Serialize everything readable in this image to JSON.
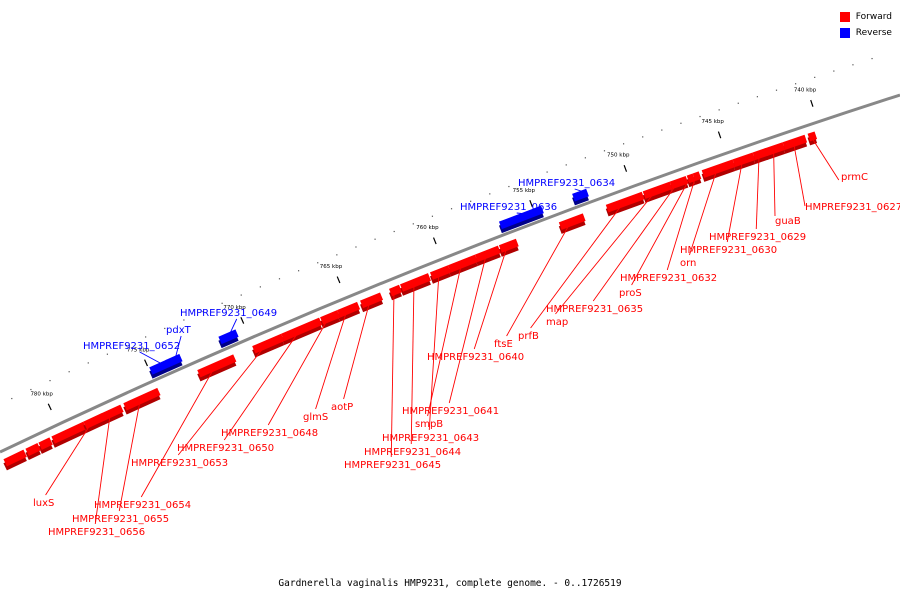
{
  "legend": [
    {
      "label": "Forward",
      "color": "#ff0000"
    },
    {
      "label": "Reverse",
      "color": "#0000ff"
    }
  ],
  "caption": "Gardnerella vaginalis HMP9231, complete genome. - 0..1726519",
  "colors": {
    "forward": "#ff0000",
    "reverse": "#0000ff",
    "backbone": "#888888"
  },
  "ticks": [
    {
      "label": "740 kbp"
    },
    {
      "label": "745 kbp"
    },
    {
      "label": "750 kbp"
    },
    {
      "label": "755 kbp"
    },
    {
      "label": "760 kbp"
    },
    {
      "label": "765 kbp"
    },
    {
      "label": "770 kbp"
    },
    {
      "label": "775 kbp"
    },
    {
      "label": "780 kbp"
    }
  ],
  "genes": [
    {
      "name": "prmC",
      "strand": "forward"
    },
    {
      "name": "HMPREF9231_0627",
      "strand": "forward"
    },
    {
      "name": "guaB",
      "strand": "forward"
    },
    {
      "name": "HMPREF9231_0629",
      "strand": "forward"
    },
    {
      "name": "HMPREF9231_0630",
      "strand": "forward"
    },
    {
      "name": "orn",
      "strand": "forward"
    },
    {
      "name": "HMPREF9231_0632",
      "strand": "forward"
    },
    {
      "name": "proS",
      "strand": "forward"
    },
    {
      "name": "HMPREF9231_0634",
      "strand": "reverse"
    },
    {
      "name": "HMPREF9231_0635",
      "strand": "forward"
    },
    {
      "name": "HMPREF9231_0636",
      "strand": "reverse"
    },
    {
      "name": "map",
      "strand": "forward"
    },
    {
      "name": "prfB",
      "strand": "forward"
    },
    {
      "name": "ftsE",
      "strand": "forward"
    },
    {
      "name": "HMPREF9231_0640",
      "strand": "forward"
    },
    {
      "name": "HMPREF9231_0641",
      "strand": "forward"
    },
    {
      "name": "smpB",
      "strand": "forward"
    },
    {
      "name": "HMPREF9231_0643",
      "strand": "forward"
    },
    {
      "name": "HMPREF9231_0644",
      "strand": "forward"
    },
    {
      "name": "HMPREF9231_0645",
      "strand": "forward"
    },
    {
      "name": "aotP",
      "strand": "forward"
    },
    {
      "name": "glmS",
      "strand": "forward"
    },
    {
      "name": "HMPREF9231_0648",
      "strand": "forward"
    },
    {
      "name": "HMPREF9231_0649",
      "strand": "reverse"
    },
    {
      "name": "HMPREF9231_0650",
      "strand": "forward"
    },
    {
      "name": "pdxT",
      "strand": "reverse"
    },
    {
      "name": "HMPREF9231_0652",
      "strand": "reverse"
    },
    {
      "name": "HMPREF9231_0653",
      "strand": "forward"
    },
    {
      "name": "HMPREF9231_0654",
      "strand": "forward"
    },
    {
      "name": "HMPREF9231_0655",
      "strand": "forward"
    },
    {
      "name": "HMPREF9231_0656",
      "strand": "forward"
    },
    {
      "name": "luxS",
      "strand": "forward"
    }
  ]
}
